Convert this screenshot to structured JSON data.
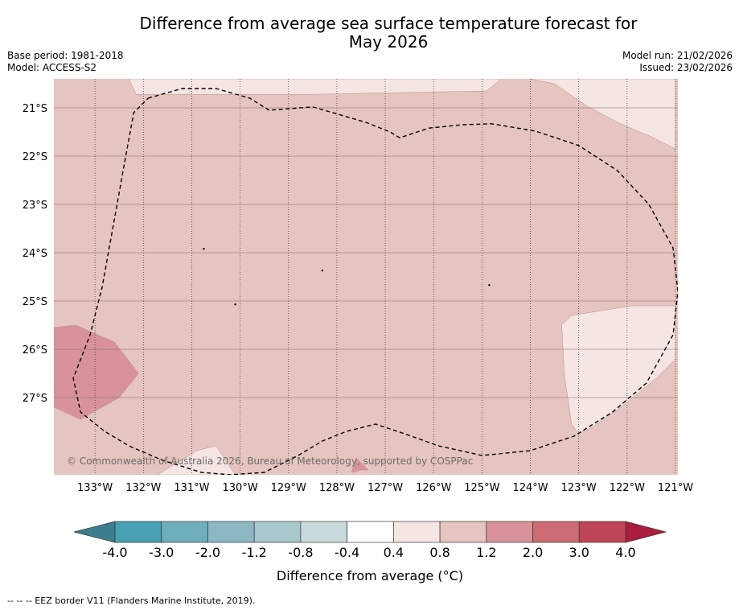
{
  "chart_data": {
    "type": "heatmap",
    "title_line1": "Difference from average sea surface temperature forecast for",
    "title_line2": "May 2026",
    "base_period": "Base period: 1981-2018",
    "model": "Model: ACCESS-S2",
    "model_run": "Model run: 21/02/2026",
    "issued": "Issued: 23/02/2026",
    "lon_range": [
      -133.85,
      -120.95
    ],
    "lat_range": [
      -28.6,
      -20.4
    ],
    "lon_ticks": [
      {
        "value": -133,
        "label": "133°W"
      },
      {
        "value": -132,
        "label": "132°W"
      },
      {
        "value": -131,
        "label": "131°W"
      },
      {
        "value": -130,
        "label": "130°W"
      },
      {
        "value": -129,
        "label": "129°W"
      },
      {
        "value": -128,
        "label": "128°W"
      },
      {
        "value": -127,
        "label": "127°W"
      },
      {
        "value": -126,
        "label": "126°W"
      },
      {
        "value": -125,
        "label": "125°W"
      },
      {
        "value": -124,
        "label": "124°W"
      },
      {
        "value": -123,
        "label": "123°W"
      },
      {
        "value": -122,
        "label": "122°W"
      },
      {
        "value": -121,
        "label": "121°W"
      }
    ],
    "lat_ticks": [
      {
        "value": -21,
        "label": "21°S"
      },
      {
        "value": -22,
        "label": "22°S"
      },
      {
        "value": -23,
        "label": "23°S"
      },
      {
        "value": -24,
        "label": "24°S"
      },
      {
        "value": -25,
        "label": "25°S"
      },
      {
        "value": -26,
        "label": "26°S"
      },
      {
        "value": -27,
        "label": "27°S"
      }
    ],
    "background_category": "0.8 to 1.2",
    "regions": [
      {
        "name": "0.4 to 0.8 (north-east)",
        "color": "#f5e6e4",
        "points": [
          [
            -124.0,
            -20.4
          ],
          [
            -121.0,
            -20.4
          ],
          [
            -121.0,
            -21.85
          ],
          [
            -121.5,
            -21.6
          ],
          [
            -122.2,
            -21.3
          ],
          [
            -122.85,
            -20.95
          ],
          [
            -123.5,
            -20.5
          ]
        ]
      },
      {
        "name": "0.4 to 0.8 (north-west strip)",
        "color": "#f5e6e4",
        "points": [
          [
            -132.3,
            -20.4
          ],
          [
            -124.6,
            -20.4
          ],
          [
            -124.9,
            -20.65
          ],
          [
            -128.5,
            -20.72
          ],
          [
            -131.5,
            -20.72
          ],
          [
            -132.15,
            -20.72
          ]
        ]
      },
      {
        "name": "0.4 to 0.8 (east)",
        "color": "#f5e6e4",
        "points": [
          [
            -123.35,
            -25.5
          ],
          [
            -123.15,
            -25.3
          ],
          [
            -121.9,
            -25.1
          ],
          [
            -121.0,
            -25.1
          ],
          [
            -121.0,
            -26.2
          ],
          [
            -121.4,
            -26.6
          ],
          [
            -122.0,
            -27.1
          ],
          [
            -122.7,
            -27.6
          ],
          [
            -123.0,
            -27.75
          ],
          [
            -123.15,
            -27.55
          ],
          [
            -123.3,
            -26.5
          ]
        ]
      },
      {
        "name": "0.4 to 0.8 (south)",
        "color": "#f5e6e4",
        "points": [
          [
            -131.7,
            -28.6
          ],
          [
            -130.9,
            -28.1
          ],
          [
            -130.5,
            -28.0
          ],
          [
            -130.1,
            -28.6
          ]
        ]
      },
      {
        "name": "1.2 to 2.0 (west)",
        "color": "#d8939a",
        "points": [
          [
            -133.85,
            -25.55
          ],
          [
            -133.4,
            -25.5
          ],
          [
            -132.6,
            -25.85
          ],
          [
            -132.1,
            -26.5
          ],
          [
            -132.5,
            -27.0
          ],
          [
            -133.3,
            -27.45
          ],
          [
            -133.85,
            -27.2
          ]
        ]
      },
      {
        "name": "1.2 to 2.0 (south)",
        "color": "#d8939a",
        "points": [
          [
            -127.7,
            -28.55
          ],
          [
            -127.5,
            -28.5
          ],
          [
            -127.35,
            -28.5
          ],
          [
            -127.6,
            -28.25
          ]
        ]
      }
    ],
    "eez_border": [
      [
        -131.9,
        -20.8
      ],
      [
        -131.2,
        -20.6
      ],
      [
        -130.5,
        -20.6
      ],
      [
        -129.8,
        -20.8
      ],
      [
        -129.4,
        -21.05
      ],
      [
        -128.5,
        -20.98
      ],
      [
        -127.4,
        -21.3
      ],
      [
        -126.9,
        -21.5
      ],
      [
        -126.7,
        -21.62
      ],
      [
        -126.1,
        -21.42
      ],
      [
        -125.4,
        -21.35
      ],
      [
        -124.8,
        -21.33
      ],
      [
        -123.9,
        -21.48
      ],
      [
        -123.0,
        -21.78
      ],
      [
        -122.2,
        -22.3
      ],
      [
        -121.55,
        -23.0
      ],
      [
        -121.05,
        -23.9
      ],
      [
        -120.95,
        -24.8
      ],
      [
        -121.05,
        -25.7
      ],
      [
        -121.6,
        -26.7
      ],
      [
        -122.3,
        -27.3
      ],
      [
        -123.1,
        -27.8
      ],
      [
        -124.0,
        -28.1
      ],
      [
        -125.0,
        -28.2
      ],
      [
        -125.9,
        -28.0
      ],
      [
        -126.6,
        -27.75
      ],
      [
        -127.2,
        -27.55
      ],
      [
        -127.8,
        -27.7
      ],
      [
        -128.3,
        -27.9
      ],
      [
        -128.8,
        -28.2
      ],
      [
        -129.5,
        -28.55
      ],
      [
        -130.2,
        -28.6
      ],
      [
        -130.8,
        -28.55
      ],
      [
        -131.6,
        -28.3
      ],
      [
        -132.3,
        -28.0
      ],
      [
        -132.8,
        -27.7
      ],
      [
        -133.3,
        -27.3
      ],
      [
        -133.45,
        -26.6
      ],
      [
        -133.1,
        -25.7
      ],
      [
        -132.85,
        -24.7
      ],
      [
        -132.4,
        -22.2
      ],
      [
        -132.2,
        -21.1
      ],
      [
        -131.9,
        -20.8
      ]
    ],
    "islands": [
      [
        -130.75,
        -23.92
      ],
      [
        -128.3,
        -24.37
      ],
      [
        -124.85,
        -24.67
      ],
      [
        -130.1,
        -25.07
      ]
    ],
    "colorbar": {
      "boundaries": [
        -4.0,
        -3.0,
        -2.0,
        -1.2,
        -0.8,
        -0.4,
        0.4,
        0.8,
        1.2,
        2.0,
        3.0,
        4.0
      ],
      "tick_labels": [
        "-4.0",
        "-3.0",
        "-2.0",
        "-1.2",
        "-0.8",
        "-0.4",
        "0.4",
        "0.8",
        "1.2",
        "2.0",
        "3.0",
        "4.0"
      ],
      "colors": [
        "#48a1b3",
        "#6eaebd",
        "#8cb8c4",
        "#a8c8cd",
        "#c9dadd",
        "#ffffff",
        "#f5e6e4",
        "#e6c4bf",
        "#d8939a",
        "#cd6b74",
        "#bf4656"
      ],
      "under_color": "#3b7f8e",
      "over_color": "#a81e3c",
      "label": "Difference from average (°C)"
    },
    "copyright": "© Commonwealth of Australia 2026, Bureau of Meteorology, supported by COSPPac",
    "legend_note": "--  --  -- EEZ border V11 (Flanders Marine Institute, 2019)."
  }
}
